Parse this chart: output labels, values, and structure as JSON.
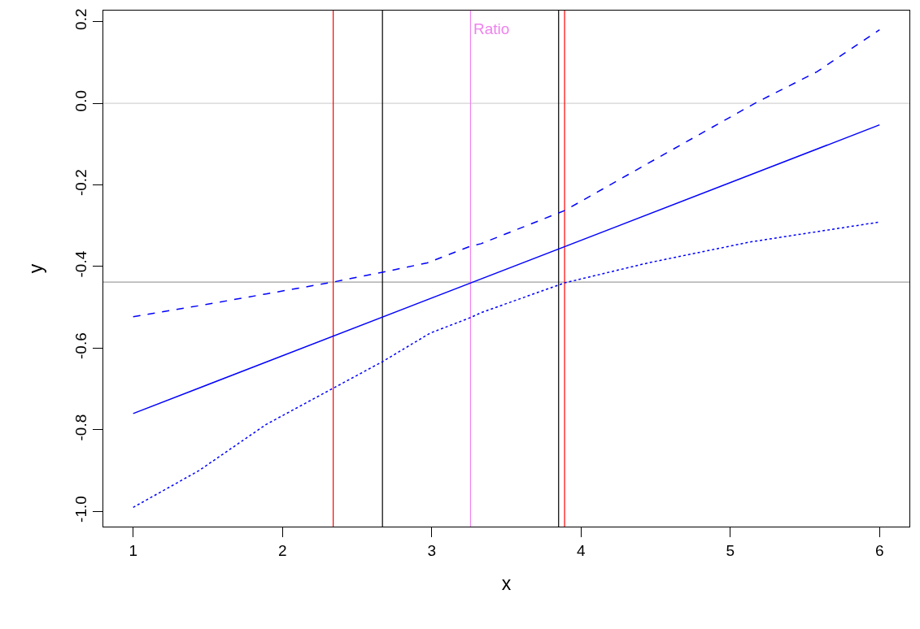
{
  "chart_data": {
    "type": "line",
    "xlabel": "x",
    "ylabel": "y",
    "xlim": [
      0.8,
      6.2
    ],
    "ylim": [
      -1.037,
      0.227
    ],
    "xticks": [
      1,
      2,
      3,
      4,
      5,
      6
    ],
    "yticks": [
      {
        "value": -1,
        "label": "-1.0"
      },
      {
        "value": -0.8,
        "label": "-0.8"
      },
      {
        "value": -0.6,
        "label": "-0.6"
      },
      {
        "value": -0.4,
        "label": "-0.4"
      },
      {
        "value": -0.2,
        "label": "-0.2"
      },
      {
        "value": 0,
        "label": "0.0"
      },
      {
        "value": 0.2,
        "label": "0.2"
      }
    ],
    "grid": false,
    "series": [
      {
        "color": "#0000ff",
        "line_style": "solid",
        "x": [
          1,
          6
        ],
        "values": [
          -0.76,
          -0.053
        ]
      },
      {
        "color": "#0000ff",
        "line_style": "dashed",
        "x": [
          1,
          1.44,
          1.89,
          2.34,
          2.67,
          2.97,
          3.26,
          3.33,
          3.89,
          4.45,
          5.17,
          5.58,
          6
        ],
        "values": [
          -0.523,
          -0.496,
          -0.467,
          -0.438,
          -0.414,
          -0.391,
          -0.35,
          -0.344,
          -0.263,
          -0.147,
          0.001,
          0.077,
          0.18
        ]
      },
      {
        "color": "#0000ff",
        "line_style": "dotted",
        "x": [
          1,
          1.44,
          1.89,
          2.34,
          2.67,
          2.99,
          3.26,
          3.33,
          3.89,
          4.45,
          5.13,
          6
        ],
        "values": [
          -0.99,
          -0.9,
          -0.787,
          -0.698,
          -0.633,
          -0.563,
          -0.525,
          -0.513,
          -0.44,
          -0.391,
          -0.34,
          -0.291
        ]
      }
    ],
    "ref_lines": [
      {
        "axis": "y",
        "value": 0,
        "color": "#d3d3d3"
      },
      {
        "axis": "y",
        "value": -0.438,
        "color": "#a0a0a0"
      },
      {
        "axis": "x",
        "value": 2.34,
        "color": "#ff0000"
      },
      {
        "axis": "x",
        "value": 3.89,
        "color": "#ff0000"
      },
      {
        "axis": "x",
        "value": 2.67,
        "color": "#000000"
      },
      {
        "axis": "x",
        "value": 3.85,
        "color": "#000000"
      },
      {
        "axis": "x",
        "value": 3.26,
        "color": "#ee82ee",
        "label": "Ratio"
      }
    ]
  }
}
